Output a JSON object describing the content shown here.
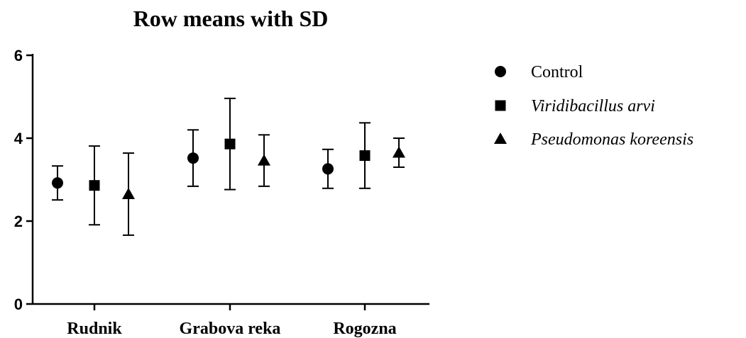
{
  "chart_data": {
    "type": "scatter",
    "title": "Row means with SD",
    "xlabel": "",
    "ylabel": "",
    "ylim": [
      0,
      6
    ],
    "yticks": [
      0,
      2,
      4,
      6
    ],
    "categories": [
      "Rudnik",
      "Grabova reka",
      "Rogozna"
    ],
    "series": [
      {
        "name": "Control",
        "marker": "circle",
        "italic": false,
        "means": [
          2.92,
          3.52,
          3.26
        ],
        "sd": [
          0.41,
          0.68,
          0.47
        ]
      },
      {
        "name": "Viridibacillus arvi",
        "marker": "square",
        "italic": true,
        "means": [
          2.86,
          3.86,
          3.58
        ],
        "sd": [
          0.95,
          1.1,
          0.79
        ]
      },
      {
        "name": "Pseudomonas koreensis",
        "marker": "triangle",
        "italic": true,
        "means": [
          2.65,
          3.46,
          3.65
        ],
        "sd": [
          0.99,
          0.62,
          0.35
        ]
      }
    ],
    "legend_position": "right",
    "color": "#000000"
  }
}
